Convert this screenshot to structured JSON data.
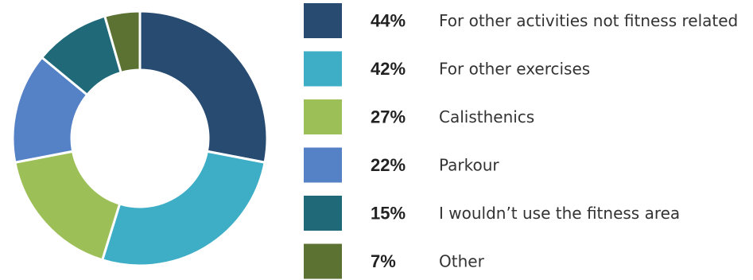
{
  "chart_data": {
    "type": "pie",
    "title": "",
    "categories": [
      "For other activities not fitness related",
      "For other exercises",
      "Calisthenics",
      "Parkour",
      "I wouldn’t use the fitness area",
      "Other"
    ],
    "values": [
      44,
      42,
      27,
      22,
      15,
      7
    ],
    "value_labels": [
      "44%",
      "42%",
      "27%",
      "22%",
      "15%",
      "7%"
    ],
    "colors": [
      "#284B72",
      "#3DAEC6",
      "#9DBF57",
      "#5581C6",
      "#1F6979",
      "#5B7233"
    ],
    "donut": true,
    "legend_position": "right"
  }
}
